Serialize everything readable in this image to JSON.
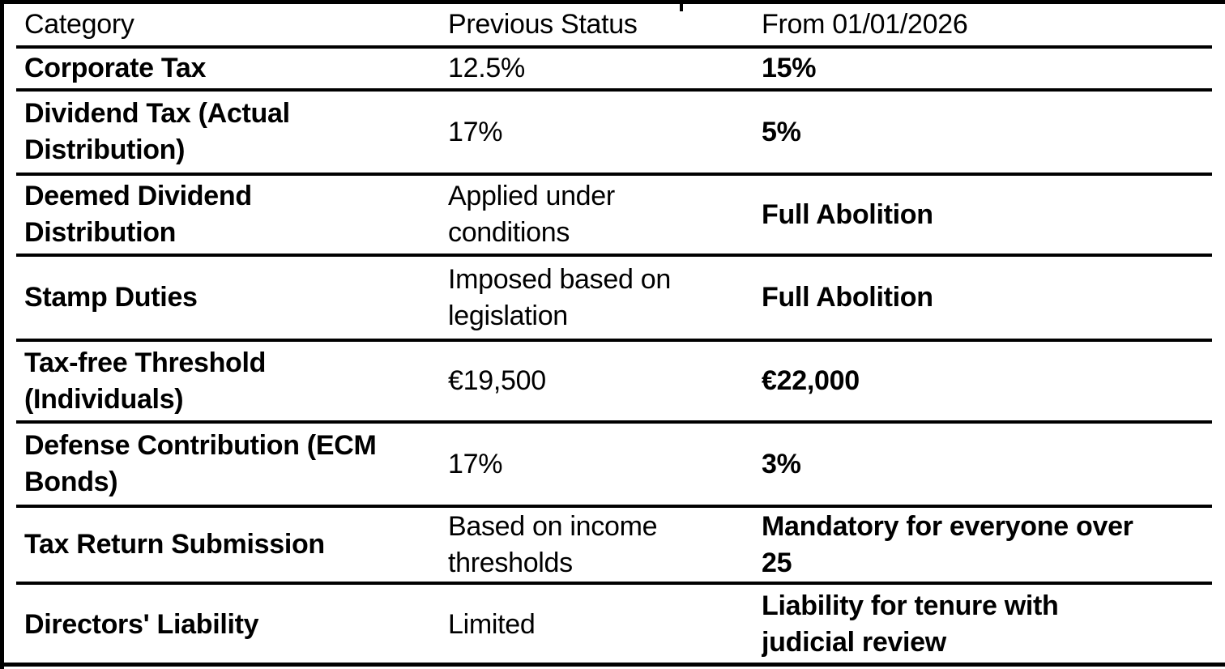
{
  "document": {
    "type": "tax-changes-comparison-table"
  },
  "colors": {
    "background": "#ffffff",
    "text": "#000000",
    "border": "#000000"
  },
  "table": {
    "headers": [
      "Category",
      "Previous Status",
      "From 01/01/2026"
    ],
    "rows": [
      {
        "category": "Corporate Tax",
        "previous": "12.5%",
        "from_2026": "15%"
      },
      {
        "category": "Dividend Tax (Actual\nDistribution)",
        "previous": "17%",
        "from_2026": "5%"
      },
      {
        "category": "Deemed Dividend\nDistribution",
        "previous": "Applied under\nconditions",
        "from_2026": "Full Abolition"
      },
      {
        "category": "Stamp Duties",
        "previous": "Imposed based on\nlegislation",
        "from_2026": "Full Abolition"
      },
      {
        "category": "Tax-free Threshold\n(Individuals)",
        "previous": "€19,500",
        "from_2026": "€22,000"
      },
      {
        "category": "Defense Contribution (ECM\nBonds)",
        "previous": "17%",
        "from_2026": "3%"
      },
      {
        "category": "Tax Return Submission",
        "previous": "Based on income\nthresholds",
        "from_2026": "Mandatory for everyone over\n25"
      },
      {
        "category": "Directors' Liability",
        "previous": "Limited",
        "from_2026": "Liability for tenure with\njudicial review"
      }
    ]
  }
}
